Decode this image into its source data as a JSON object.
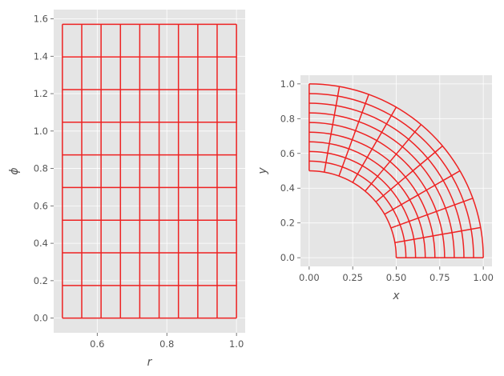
{
  "chart_data": [
    {
      "type": "line",
      "title": "",
      "xlabel": "r",
      "ylabel": "ϕ",
      "xlim": [
        0.475,
        1.025
      ],
      "ylim": [
        -0.0785,
        1.6493
      ],
      "xticks": [
        0.6,
        0.8,
        1.0
      ],
      "xtick_labels": [
        "0.6",
        "0.8",
        "1.0"
      ],
      "yticks": [
        0.0,
        0.2,
        0.4,
        0.6,
        0.8,
        1.0,
        1.2,
        1.4,
        1.6
      ],
      "ytick_labels": [
        "0.0",
        "0.2",
        "0.4",
        "0.6",
        "0.8",
        "1.0",
        "1.2",
        "1.4",
        "1.6"
      ],
      "grid": true,
      "series": [
        {
          "color": "#ee2222",
          "r_values": [
            0.5,
            0.5556,
            0.6111,
            0.6667,
            0.7222,
            0.7778,
            0.8333,
            0.8889,
            0.9444,
            1.0
          ],
          "phi_values": [
            0.0,
            0.1745,
            0.3491,
            0.5236,
            0.6981,
            0.8727,
            1.0472,
            1.2217,
            1.3963,
            1.5708
          ]
        }
      ]
    },
    {
      "type": "line",
      "title": "",
      "xlabel": "x",
      "ylabel": "y",
      "xlim": [
        -0.05,
        1.05
      ],
      "ylim": [
        -0.05,
        1.05
      ],
      "xticks": [
        0.0,
        0.25,
        0.5,
        0.75,
        1.0
      ],
      "xtick_labels": [
        "0.00",
        "0.25",
        "0.50",
        "0.75",
        "1.00"
      ],
      "yticks": [
        0.0,
        0.2,
        0.4,
        0.6,
        0.8,
        1.0
      ],
      "ytick_labels": [
        "0.0",
        "0.2",
        "0.4",
        "0.6",
        "0.8",
        "1.0"
      ],
      "grid": true,
      "aspect": "equal",
      "series": [
        {
          "color": "#ee2222",
          "mapping": "x = r·cos(ϕ), y = r·sin(ϕ)",
          "r_values": [
            0.5,
            0.5556,
            0.6111,
            0.6667,
            0.7222,
            0.7778,
            0.8333,
            0.8889,
            0.9444,
            1.0
          ],
          "phi_values": [
            0.0,
            0.1745,
            0.3491,
            0.5236,
            0.6981,
            0.8727,
            1.0472,
            1.2217,
            1.3963,
            1.5708
          ]
        }
      ]
    }
  ]
}
